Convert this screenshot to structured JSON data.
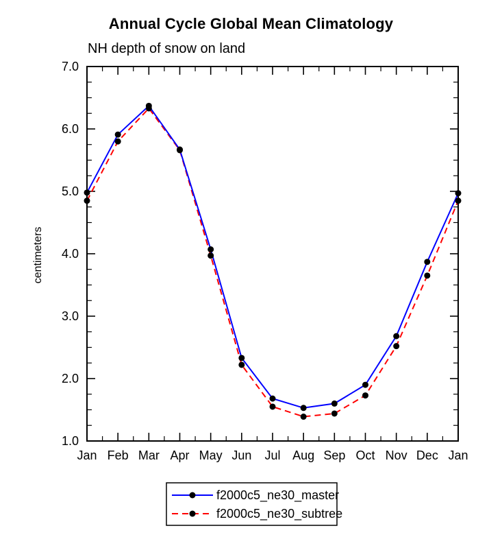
{
  "chart_data": {
    "type": "line",
    "title": "Annual Cycle Global Mean Climatology",
    "subtitle": "NH depth of snow on land",
    "ylabel": "centimeters",
    "xlabel": "",
    "categories": [
      "Jan",
      "Feb",
      "Mar",
      "Apr",
      "May",
      "Jun",
      "Jul",
      "Aug",
      "Sep",
      "Oct",
      "Nov",
      "Dec",
      "Jan"
    ],
    "series": [
      {
        "name": "f2000c5_ne30_master",
        "color": "#0000ff",
        "style": "solid",
        "marker": "filled-circle",
        "marker_color": "#000000",
        "values": [
          4.98,
          5.91,
          6.37,
          5.67,
          4.07,
          2.33,
          1.68,
          1.53,
          1.6,
          1.9,
          2.68,
          3.87,
          4.97
        ]
      },
      {
        "name": "f2000c5_ne30_subtree",
        "color": "#ff0000",
        "style": "dashed",
        "marker": "filled-circle",
        "marker_color": "#000000",
        "values": [
          4.85,
          5.8,
          6.33,
          5.66,
          3.97,
          2.22,
          1.55,
          1.39,
          1.44,
          1.73,
          2.52,
          3.65,
          4.85
        ]
      }
    ],
    "ylim": [
      1.0,
      7.0
    ],
    "ytick_step": 1.0,
    "ytick_labels": [
      "1.0",
      "2.0",
      "3.0",
      "4.0",
      "5.0",
      "6.0",
      "7.0"
    ],
    "grid": false,
    "frame": true,
    "ticks": "inward-all-sides",
    "legend_position": "bottom-center"
  }
}
